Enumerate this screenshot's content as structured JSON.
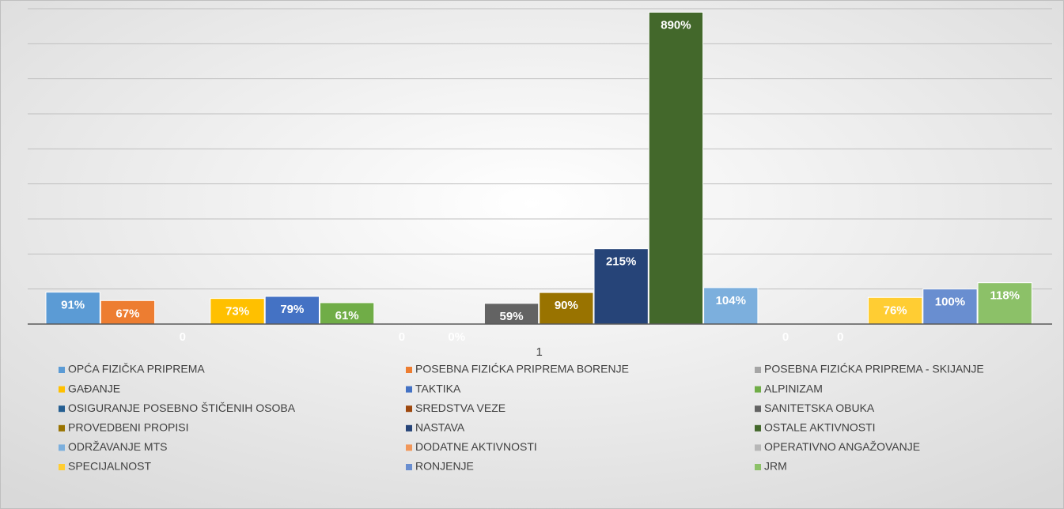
{
  "chart_data": {
    "type": "bar",
    "categories": [
      "1"
    ],
    "ylim": [
      0,
      900
    ],
    "yticks": [
      0,
      100,
      200,
      300,
      400,
      500,
      600,
      700,
      800,
      900
    ],
    "grid": true,
    "series": [
      {
        "name": "OPĆA FIZIČKA PRIPREMA",
        "color": "#5b9bd5",
        "values": [
          91
        ],
        "value_labels": [
          "91%"
        ]
      },
      {
        "name": "POSEBNA FIZIĆKA PRIPREMA BORENJE",
        "color": "#ed7d31",
        "values": [
          67
        ],
        "value_labels": [
          "67%"
        ]
      },
      {
        "name": "POSEBNA FIZIĆKA PRIPREMA - SKIJANJE",
        "color": "#a5a5a5",
        "values": [
          0
        ]
      },
      {
        "name": "GAĐANJE",
        "color": "#ffc000",
        "values": [
          73
        ],
        "value_labels": [
          "73%"
        ]
      },
      {
        "name": "TAKTIKA",
        "color": "#4472c4",
        "values": [
          79
        ],
        "value_labels": [
          "79%"
        ]
      },
      {
        "name": "ALPINIZAM",
        "color": "#70ad47",
        "values": [
          61
        ],
        "value_labels": [
          "61%"
        ]
      },
      {
        "name": "OSIGURANJE POSEBNO ŠTIČENIH OSOBA",
        "color": "#255e91",
        "values": [
          0
        ]
      },
      {
        "name": "SREDSTVA VEZE",
        "color": "#9e480e",
        "values": [
          0
        ],
        "value_labels": [
          "0%"
        ]
      },
      {
        "name": "SANITETSKA OBUKA",
        "color": "#636363",
        "values": [
          59
        ],
        "value_labels": [
          "59%"
        ]
      },
      {
        "name": "PROVEDBENI PROPISI",
        "color": "#997300",
        "values": [
          90
        ],
        "value_labels": [
          "90%"
        ]
      },
      {
        "name": "NASTAVA",
        "color": "#264478",
        "values": [
          215
        ],
        "value_labels": [
          "215%"
        ]
      },
      {
        "name": "OSTALE AKTIVNOSTI",
        "color": "#43682b",
        "values": [
          890
        ],
        "value_labels": [
          "890%"
        ]
      },
      {
        "name": "ODRŽAVANJE MTS",
        "color": "#7cafdd",
        "values": [
          104
        ],
        "value_labels": [
          "104%"
        ]
      },
      {
        "name": "DODATNE AKTIVNOSTI",
        "color": "#f1975a",
        "values": [
          0
        ]
      },
      {
        "name": "OPERATIVNO ANGAŽOVANJE",
        "color": "#b7b7b7",
        "values": [
          0
        ]
      },
      {
        "name": "SPECIJALNOST",
        "color": "#ffcd33",
        "values": [
          76
        ],
        "value_labels": [
          "76%"
        ]
      },
      {
        "name": "RONJENJE",
        "color": "#698ed0",
        "values": [
          100
        ],
        "value_labels": [
          "100%"
        ]
      },
      {
        "name": "JRM",
        "color": "#8cc168",
        "values": [
          118
        ],
        "value_labels": [
          "118%"
        ]
      }
    ]
  }
}
